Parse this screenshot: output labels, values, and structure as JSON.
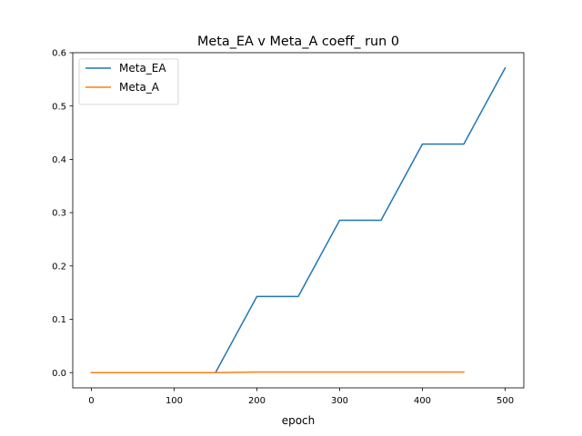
{
  "chart_data": {
    "type": "line",
    "title": "Meta_EA v Meta_A coeff_ run 0",
    "xlabel": "epoch",
    "ylabel": "",
    "xlim": [
      -22.5,
      522.5
    ],
    "ylim": [
      -0.0286,
      0.6
    ],
    "xticks": [
      0,
      100,
      200,
      300,
      400,
      500
    ],
    "yticks": [
      0.0,
      0.1,
      0.2,
      0.3,
      0.4,
      0.5,
      0.6
    ],
    "xtick_labels": [
      "0",
      "100",
      "200",
      "300",
      "400",
      "500"
    ],
    "ytick_labels": [
      "0.0",
      "0.1",
      "0.2",
      "0.3",
      "0.4",
      "0.5",
      "0.6"
    ],
    "grid": false,
    "legend_position": "upper-left",
    "series": [
      {
        "name": "Meta_EA",
        "color": "#1f77b4",
        "x": [
          0,
          50,
          100,
          150,
          200,
          250,
          300,
          350,
          400,
          450,
          500
        ],
        "y": [
          0.0,
          0.0,
          0.0,
          0.0,
          0.1429,
          0.1429,
          0.2857,
          0.2857,
          0.4286,
          0.4286,
          0.5714
        ]
      },
      {
        "name": "Meta_A",
        "color": "#ff7f0e",
        "x": [
          0,
          50,
          100,
          150,
          200,
          250,
          300,
          350,
          400,
          450
        ],
        "y": [
          0.0,
          0.0,
          0.0,
          0.0,
          0.001,
          0.001,
          0.001,
          0.001,
          0.001,
          0.001
        ]
      }
    ]
  }
}
